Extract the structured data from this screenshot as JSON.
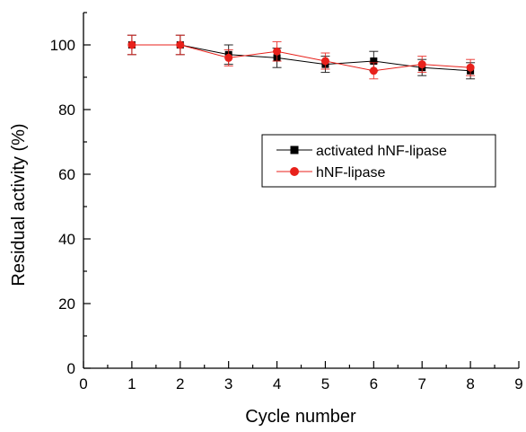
{
  "chart_data": {
    "type": "line",
    "title": "",
    "xlabel": "Cycle number",
    "ylabel": "Residual activity (%)",
    "xlim": [
      0,
      9
    ],
    "ylim": [
      0,
      110
    ],
    "xticks": [
      "0",
      "1",
      "2",
      "3",
      "4",
      "5",
      "6",
      "7",
      "8",
      "9"
    ],
    "yticks": [
      "0",
      "20",
      "40",
      "60",
      "80",
      "100"
    ],
    "grid": false,
    "legend_position": "center-right",
    "series": [
      {
        "name": "activated hNF-lipase",
        "color": "#000000",
        "marker": "square",
        "x": [
          1,
          2,
          3,
          4,
          5,
          6,
          7,
          8
        ],
        "y": [
          100,
          100,
          97,
          96,
          94,
          95,
          93,
          92
        ],
        "err": [
          3,
          3,
          3,
          3,
          2.5,
          3,
          2.5,
          2.5
        ]
      },
      {
        "name": "hNF-lipase",
        "color": "#e8211b",
        "marker": "circle",
        "x": [
          1,
          2,
          3,
          4,
          5,
          6,
          7,
          8
        ],
        "y": [
          100,
          100,
          96,
          98,
          95,
          92,
          94,
          93
        ],
        "err": [
          3,
          3,
          2.5,
          3,
          2.5,
          2.5,
          2.5,
          2.5
        ]
      }
    ]
  }
}
